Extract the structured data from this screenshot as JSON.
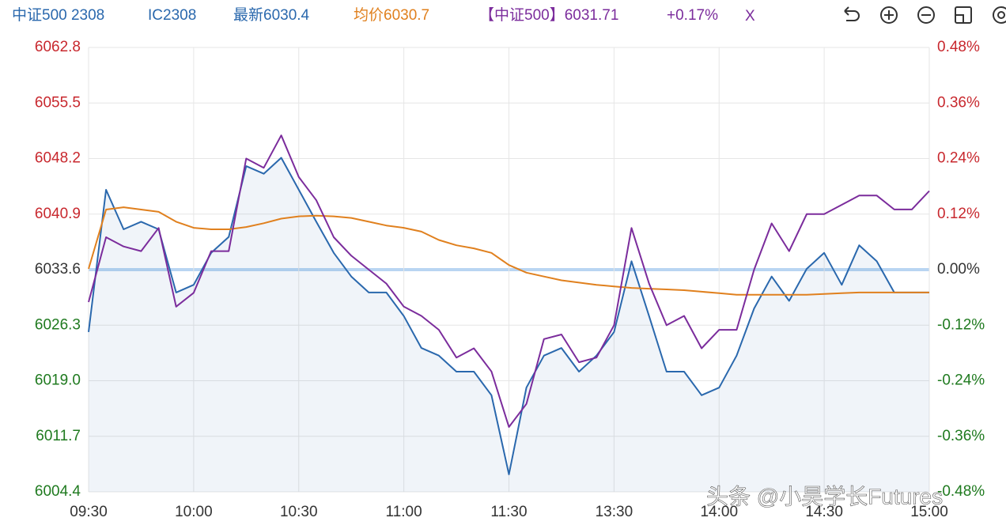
{
  "chart_data": {
    "type": "line",
    "header": {
      "symbol": "中证500 2308",
      "contract": "IC2308",
      "change": "+0.17%",
      "close": "X"
    },
    "watermark": "头条 @小昊学长Futures",
    "categories": [
      "09:30",
      null,
      null,
      null,
      null,
      null,
      "10:00",
      null,
      null,
      null,
      null,
      null,
      "10:30",
      null,
      null,
      null,
      null,
      null,
      "11:00",
      null,
      null,
      null,
      null,
      null,
      "11:30",
      null,
      null,
      null,
      null,
      null,
      "13:30",
      null,
      null,
      null,
      null,
      null,
      "14:00",
      null,
      null,
      null,
      null,
      null,
      "14:30",
      null,
      null,
      null,
      null,
      null,
      "15:00"
    ],
    "ylim": [
      6004.4,
      6062.8
    ],
    "yticks": [
      6004.4,
      6011.7,
      {
        "value": 6019.0,
        "label": "6019.0"
      },
      6026.3,
      6033.6,
      6040.9,
      6048.2,
      6055.5,
      6062.8
    ],
    "y2lim": [
      -0.48,
      0.48
    ],
    "y2ticks": [
      {
        "value": -0.48,
        "label": "-0.48%"
      },
      {
        "value": -0.36,
        "label": "-0.36%"
      },
      {
        "value": -0.24,
        "label": "-0.24%"
      },
      {
        "value": -0.12,
        "label": "-0.12%"
      },
      {
        "value": 0,
        "label": "0.00%"
      },
      {
        "value": 0.12,
        "label": "0.12%"
      },
      {
        "value": 0.24,
        "label": "0.24%"
      },
      {
        "value": 0.36,
        "label": "0.36%"
      },
      {
        "value": 0.48,
        "label": "0.48%"
      }
    ],
    "grid": true,
    "up_color": "#c8282e",
    "down_color": "#1f7a1f",
    "flat_color": "#333333",
    "baseline_color": "#b9d5f2",
    "series": [
      {
        "name": "最新6030.4",
        "color": "#2a68ad",
        "axis": "y",
        "fill": true,
        "values": [
          6025.4,
          6044.1,
          6038.9,
          6039.9,
          6038.9,
          6030.6,
          6031.6,
          6035.8,
          6037.9,
          6047.2,
          6046.2,
          6048.3,
          6044.1,
          6039.9,
          6035.8,
          6032.7,
          6030.6,
          6030.6,
          6027.5,
          6023.3,
          6022.3,
          6020.2,
          6020.2,
          6017.1,
          6006.7,
          6018.1,
          6022.3,
          6023.3,
          6020.2,
          6022.3,
          6025.4,
          6034.7,
          6027.5,
          6020.2,
          6020.2,
          6017.1,
          6018.1,
          6022.3,
          6028.5,
          6032.7,
          6029.5,
          6033.7,
          6035.8,
          6031.6,
          6036.8,
          6034.7,
          6030.6,
          6030.6,
          6030.6
        ]
      },
      {
        "name": "均价6030.7",
        "color": "#e0801e",
        "axis": "y",
        "values": [
          6033.7,
          6041.5,
          6041.8,
          6041.5,
          6041.2,
          6039.9,
          6039.1,
          6038.9,
          6038.9,
          6039.2,
          6039.7,
          6040.3,
          6040.6,
          6040.7,
          6040.6,
          6040.4,
          6039.9,
          6039.4,
          6039.1,
          6038.6,
          6037.5,
          6036.8,
          6036.4,
          6035.8,
          6034.2,
          6033.2,
          6032.7,
          6032.2,
          6031.9,
          6031.6,
          6031.4,
          6031.2,
          6031.1,
          6031.0,
          6030.9,
          6030.7,
          6030.5,
          6030.3,
          6030.3,
          6030.3,
          6030.3,
          6030.3,
          6030.4,
          6030.5,
          6030.6,
          6030.6,
          6030.6,
          6030.6,
          6030.6
        ]
      },
      {
        "name": "【中证500】6031.71",
        "color": "#7b2c9c",
        "axis": "y2",
        "values": [
          -0.07,
          0.07,
          0.05,
          0.04,
          0.09,
          -0.08,
          -0.05,
          0.04,
          0.04,
          0.24,
          0.22,
          0.29,
          0.2,
          0.15,
          0.07,
          0.03,
          0.0,
          -0.03,
          -0.08,
          -0.1,
          -0.13,
          -0.19,
          -0.17,
          -0.22,
          -0.34,
          -0.29,
          -0.15,
          -0.14,
          -0.2,
          -0.19,
          -0.12,
          0.09,
          -0.03,
          -0.12,
          -0.1,
          -0.17,
          -0.13,
          -0.13,
          0.0,
          0.1,
          0.04,
          0.12,
          0.12,
          0.14,
          0.16,
          0.16,
          0.13,
          0.13,
          0.17
        ]
      }
    ]
  }
}
